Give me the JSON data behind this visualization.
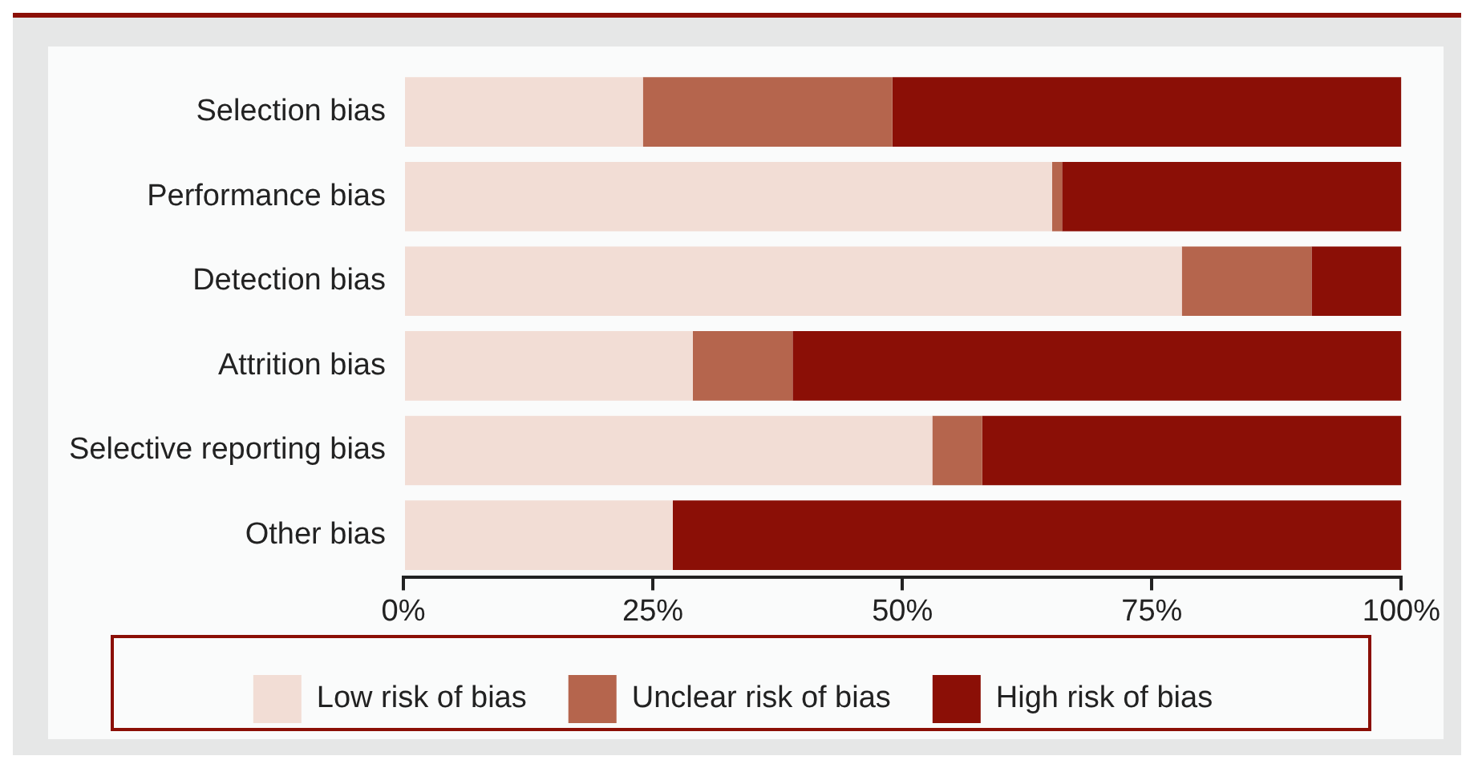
{
  "chart_data": {
    "type": "bar",
    "orientation": "horizontal",
    "stacked": true,
    "categories": [
      "Selection bias",
      "Performance bias",
      "Detection bias",
      "Attrition bias",
      "Selective reporting bias",
      "Other bias"
    ],
    "series": [
      {
        "name": "Low risk of bias",
        "color": "#f2ddd5",
        "values": [
          24,
          65,
          78,
          29,
          53,
          27
        ]
      },
      {
        "name": "Unclear risk of bias",
        "color": "#b5654d",
        "values": [
          25,
          1,
          13,
          10,
          5,
          0
        ]
      },
      {
        "name": "High risk of bias",
        "color": "#8b0f06",
        "values": [
          51,
          34,
          9,
          61,
          42,
          73
        ]
      }
    ],
    "xlim": [
      0,
      100
    ],
    "xticks": [
      {
        "value": 0,
        "label": "0%"
      },
      {
        "value": 25,
        "label": "25%"
      },
      {
        "value": 50,
        "label": "50%"
      },
      {
        "value": 75,
        "label": "75%"
      },
      {
        "value": 100,
        "label": "100%"
      }
    ],
    "grid": false,
    "legend": "bottom"
  }
}
